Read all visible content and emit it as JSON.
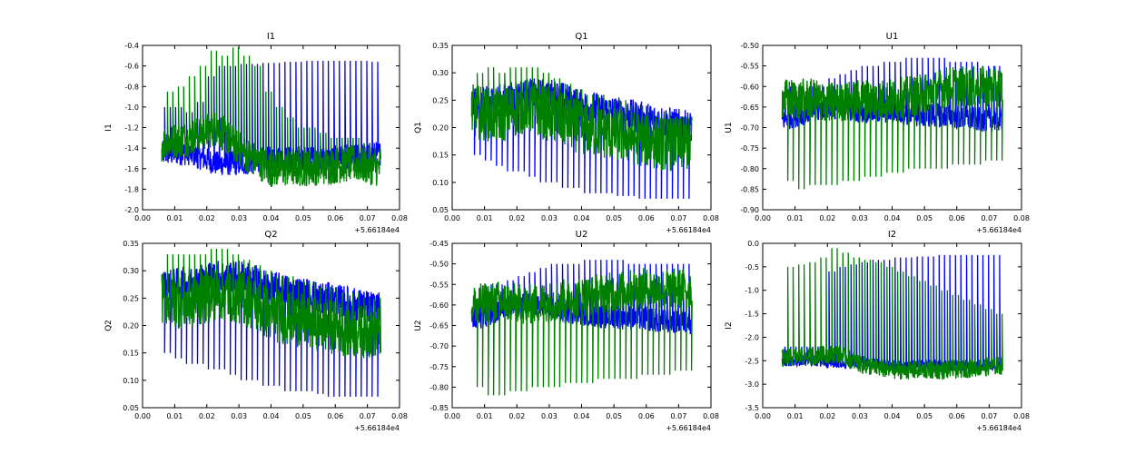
{
  "chart_data": [
    {
      "type": "line",
      "title": "I1",
      "xlabel": "",
      "ylabel": "I1",
      "x_offset_label": "+5.66184e4",
      "xlim": [
        0.0,
        0.08
      ],
      "ylim": [
        -2.0,
        -0.4
      ],
      "xticks": [
        "0.00",
        "0.01",
        "0.02",
        "0.03",
        "0.04",
        "0.05",
        "0.06",
        "0.07",
        "0.08"
      ],
      "yticks": [
        "-2.0",
        "-1.8",
        "-1.6",
        "-1.4",
        "-1.2",
        "-1.0",
        "-0.8",
        "-0.6",
        "-0.4"
      ],
      "series": [
        {
          "color": "#0000ff",
          "x": [
            0.006,
            0.074
          ],
          "base": [
            -1.45,
            -1.45,
            -1.55,
            -1.55,
            -1.5,
            -1.5,
            -1.5,
            -1.48,
            -1.45
          ],
          "band": 0.12,
          "spike_values": [
            -1.0,
            -1.0,
            -1.05,
            -0.95,
            -0.7,
            -0.6,
            -0.6,
            -0.58,
            -0.58,
            -0.57,
            -0.57,
            -0.56,
            -0.56,
            -0.55,
            -0.55,
            -0.55,
            -0.55,
            -0.55,
            -0.55,
            -0.56
          ]
        },
        {
          "color": "#008000",
          "x": [
            0.006,
            0.074
          ],
          "base": [
            -1.35,
            -1.3,
            -1.2,
            -1.45,
            -1.6,
            -1.6,
            -1.58,
            -1.55,
            -1.6
          ],
          "band": 0.18,
          "spike_values": [
            -0.85,
            -0.8,
            -0.7,
            -0.6,
            -0.45,
            -0.5,
            -0.42,
            -0.5,
            -0.6,
            -0.85,
            -1.0,
            -1.1,
            -1.2,
            -1.2,
            -1.25,
            -1.3,
            -1.3,
            -1.3,
            -1.35,
            -1.4
          ]
        }
      ]
    },
    {
      "type": "line",
      "title": "Q1",
      "xlabel": "",
      "ylabel": "Q1",
      "x_offset_label": "+5.66184e4",
      "xlim": [
        0.0,
        0.08
      ],
      "ylim": [
        0.05,
        0.35
      ],
      "xticks": [
        "0.00",
        "0.01",
        "0.02",
        "0.03",
        "0.04",
        "0.05",
        "0.06",
        "0.07",
        "0.08"
      ],
      "yticks": [
        "0.05",
        "0.10",
        "0.15",
        "0.20",
        "0.25",
        "0.30",
        "0.35"
      ],
      "series": [
        {
          "color": "#0000ff",
          "x": [
            0.006,
            0.074
          ],
          "base": [
            0.24,
            0.25,
            0.26,
            0.26,
            0.24,
            0.23,
            0.22,
            0.21,
            0.2
          ],
          "band": 0.03,
          "spike_values": [
            0.15,
            0.14,
            0.13,
            0.12,
            0.12,
            0.11,
            0.1,
            0.1,
            0.09,
            0.09,
            0.08,
            0.08,
            0.08,
            0.075,
            0.075,
            0.07,
            0.07,
            0.07,
            0.07,
            0.07
          ]
        },
        {
          "color": "#008000",
          "x": [
            0.006,
            0.074
          ],
          "base": [
            0.23,
            0.22,
            0.24,
            0.22,
            0.2,
            0.19,
            0.18,
            0.17,
            0.17
          ],
          "band": 0.05,
          "spike_values": [
            0.3,
            0.31,
            0.3,
            0.31,
            0.31,
            0.31,
            0.3,
            0.29,
            0.28,
            0.27,
            0.26,
            0.26,
            0.25,
            0.25,
            0.24,
            0.24,
            0.23,
            0.23,
            0.22,
            0.22
          ]
        }
      ]
    },
    {
      "type": "line",
      "title": "U1",
      "xlabel": "",
      "ylabel": "U1",
      "x_offset_label": "+5.66184e4",
      "xlim": [
        0.0,
        0.08
      ],
      "ylim": [
        -0.9,
        -0.5
      ],
      "xticks": [
        "0.00",
        "0.01",
        "0.02",
        "0.03",
        "0.04",
        "0.05",
        "0.06",
        "0.07",
        "0.08"
      ],
      "yticks": [
        "-0.90",
        "-0.85",
        "-0.80",
        "-0.75",
        "-0.70",
        "-0.65",
        "-0.60",
        "-0.55",
        "-0.50"
      ],
      "series": [
        {
          "color": "#0000ff",
          "x": [
            0.006,
            0.074
          ],
          "base": [
            -0.68,
            -0.66,
            -0.65,
            -0.66,
            -0.66,
            -0.67,
            -0.67,
            -0.68,
            -0.68
          ],
          "band": 0.03,
          "spike_values": [
            -0.6,
            -0.6,
            -0.6,
            -0.6,
            -0.58,
            -0.57,
            -0.56,
            -0.55,
            -0.55,
            -0.54,
            -0.54,
            -0.53,
            -0.53,
            -0.53,
            -0.53,
            -0.54,
            -0.54,
            -0.54,
            -0.55,
            -0.55
          ]
        },
        {
          "color": "#008000",
          "x": [
            0.006,
            0.074
          ],
          "base": [
            -0.63,
            -0.63,
            -0.64,
            -0.63,
            -0.63,
            -0.62,
            -0.6,
            -0.6,
            -0.6
          ],
          "band": 0.05,
          "spike_values": [
            -0.83,
            -0.85,
            -0.84,
            -0.84,
            -0.84,
            -0.83,
            -0.83,
            -0.82,
            -0.82,
            -0.81,
            -0.81,
            -0.8,
            -0.8,
            -0.8,
            -0.8,
            -0.79,
            -0.79,
            -0.79,
            -0.78,
            -0.78
          ]
        }
      ]
    },
    {
      "type": "line",
      "title": "Q2",
      "xlabel": "",
      "ylabel": "Q2",
      "x_offset_label": "+5.66184e4",
      "xlim": [
        0.0,
        0.08
      ],
      "ylim": [
        0.05,
        0.35
      ],
      "xticks": [
        "0.00",
        "0.01",
        "0.02",
        "0.03",
        "0.04",
        "0.05",
        "0.06",
        "0.07",
        "0.08"
      ],
      "yticks": [
        "0.05",
        "0.10",
        "0.15",
        "0.20",
        "0.25",
        "0.30",
        "0.35"
      ],
      "series": [
        {
          "color": "#0000ff",
          "x": [
            0.006,
            0.074
          ],
          "base": [
            0.27,
            0.28,
            0.29,
            0.29,
            0.27,
            0.26,
            0.25,
            0.24,
            0.23
          ],
          "band": 0.03,
          "spike_values": [
            0.15,
            0.14,
            0.13,
            0.13,
            0.12,
            0.12,
            0.11,
            0.1,
            0.1,
            0.09,
            0.09,
            0.08,
            0.08,
            0.08,
            0.075,
            0.07,
            0.07,
            0.07,
            0.07,
            0.07
          ]
        },
        {
          "color": "#008000",
          "x": [
            0.006,
            0.074
          ],
          "base": [
            0.25,
            0.24,
            0.26,
            0.25,
            0.22,
            0.21,
            0.2,
            0.19,
            0.19
          ],
          "band": 0.05,
          "spike_values": [
            0.33,
            0.33,
            0.33,
            0.33,
            0.34,
            0.34,
            0.33,
            0.32,
            0.31,
            0.3,
            0.29,
            0.29,
            0.28,
            0.28,
            0.27,
            0.27,
            0.26,
            0.26,
            0.25,
            0.25
          ]
        }
      ]
    },
    {
      "type": "line",
      "title": "U2",
      "xlabel": "",
      "ylabel": "U2",
      "x_offset_label": "+5.66184e4",
      "xlim": [
        0.0,
        0.08
      ],
      "ylim": [
        -0.85,
        -0.45
      ],
      "xticks": [
        "0.00",
        "0.01",
        "0.02",
        "0.03",
        "0.04",
        "0.05",
        "0.06",
        "0.07",
        "0.08"
      ],
      "yticks": [
        "-0.85",
        "-0.80",
        "-0.75",
        "-0.70",
        "-0.65",
        "-0.60",
        "-0.55",
        "-0.50",
        "-0.45"
      ],
      "series": [
        {
          "color": "#0000ff",
          "x": [
            0.006,
            0.074
          ],
          "base": [
            -0.64,
            -0.61,
            -0.6,
            -0.61,
            -0.62,
            -0.63,
            -0.63,
            -0.64,
            -0.64
          ],
          "band": 0.03,
          "spike_values": [
            -0.56,
            -0.55,
            -0.55,
            -0.54,
            -0.53,
            -0.52,
            -0.51,
            -0.5,
            -0.5,
            -0.5,
            -0.49,
            -0.49,
            -0.49,
            -0.49,
            -0.5,
            -0.5,
            -0.5,
            -0.5,
            -0.5,
            -0.5
          ]
        },
        {
          "color": "#008000",
          "x": [
            0.006,
            0.074
          ],
          "base": [
            -0.6,
            -0.59,
            -0.6,
            -0.59,
            -0.58,
            -0.57,
            -0.56,
            -0.56,
            -0.56
          ],
          "band": 0.05,
          "spike_values": [
            -0.8,
            -0.82,
            -0.82,
            -0.81,
            -0.81,
            -0.8,
            -0.8,
            -0.8,
            -0.79,
            -0.79,
            -0.79,
            -0.78,
            -0.78,
            -0.78,
            -0.78,
            -0.77,
            -0.77,
            -0.77,
            -0.76,
            -0.76
          ]
        }
      ]
    },
    {
      "type": "line",
      "title": "I2",
      "xlabel": "",
      "ylabel": "I2",
      "x_offset_label": "+5.66184e4",
      "xlim": [
        0.0,
        0.08
      ],
      "ylim": [
        -3.5,
        0.0
      ],
      "xticks": [
        "0.00",
        "0.01",
        "0.02",
        "0.03",
        "0.04",
        "0.05",
        "0.06",
        "0.07",
        "0.08"
      ],
      "yticks": [
        "-3.5",
        "-3.0",
        "-2.5",
        "-2.0",
        "-1.5",
        "-1.0",
        "-0.5",
        "0.0"
      ],
      "series": [
        {
          "color": "#0000ff",
          "x": [
            0.006,
            0.074
          ],
          "base": [
            -2.5,
            -2.5,
            -2.55,
            -2.55,
            -2.6,
            -2.6,
            -2.6,
            -2.6,
            -2.6
          ],
          "band": 0.12,
          "spike_values": [
            -2.2,
            -2.2,
            -2.2,
            -2.2,
            -0.6,
            -0.5,
            -0.45,
            -0.4,
            -0.35,
            -0.35,
            -0.3,
            -0.3,
            -0.28,
            -0.28,
            -0.25,
            -0.25,
            -0.25,
            -0.25,
            -0.25,
            -0.25
          ]
        },
        {
          "color": "#008000",
          "x": [
            0.006,
            0.074
          ],
          "base": [
            -2.45,
            -2.4,
            -2.35,
            -2.6,
            -2.7,
            -2.7,
            -2.7,
            -2.65,
            -2.6
          ],
          "band": 0.2,
          "spike_values": [
            -0.5,
            -0.45,
            -0.4,
            -0.3,
            -0.1,
            -0.2,
            -0.3,
            -0.35,
            -0.4,
            -0.5,
            -0.6,
            -0.7,
            -0.8,
            -0.9,
            -1.0,
            -1.1,
            -1.2,
            -1.3,
            -1.4,
            -1.5
          ]
        }
      ]
    }
  ]
}
